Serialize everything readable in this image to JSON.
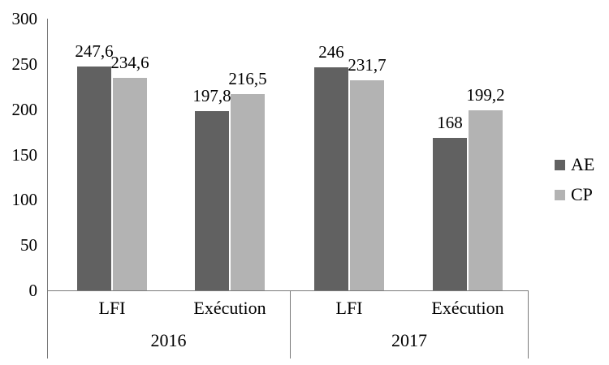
{
  "chart_data": {
    "type": "bar",
    "title": "",
    "xlabel": "",
    "ylabel": "",
    "ylim": [
      0,
      300
    ],
    "yticks": [
      300,
      250,
      200,
      150,
      100,
      50,
      0
    ],
    "grid": false,
    "legend_position": "right",
    "group_labels": [
      "2016",
      "2017"
    ],
    "categories": [
      "LFI",
      "Exécution",
      "LFI",
      "Exécution"
    ],
    "series": [
      {
        "name": "AE",
        "color": "#616161",
        "values": [
          247.6,
          197.8,
          246,
          168
        ],
        "display_labels": [
          "247,6",
          "197,8",
          "246",
          "168"
        ]
      },
      {
        "name": "CP",
        "color": "#b3b3b3",
        "values": [
          234.6,
          216.5,
          231.7,
          199.2
        ],
        "display_labels": [
          "234,6",
          "216,5",
          "231,7",
          "199,2"
        ]
      }
    ],
    "axis_color": "#7a7a7a",
    "text_color": "#000000"
  }
}
